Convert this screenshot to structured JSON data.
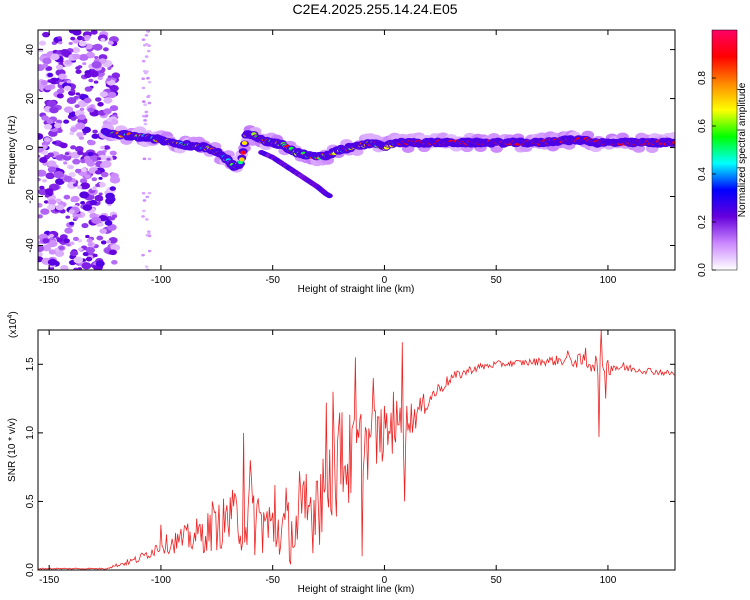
{
  "title": "C2E4.2025.255.14.24.E05",
  "chart_data": [
    {
      "type": "heatmap",
      "xlabel": "Height of straight line (km)",
      "ylabel": "Frequency (Hz)",
      "xlim": [
        -155,
        130
      ],
      "ylim": [
        -50,
        48
      ],
      "x_ticks": [
        -150,
        -100,
        -50,
        0,
        50,
        100
      ],
      "y_ticks": [
        -40,
        -20,
        0,
        20,
        40
      ],
      "colorbar": {
        "label": "Normalized spectral amplitude",
        "range": [
          0,
          1
        ],
        "ticks": [
          "0.0",
          "0.2",
          "0.4",
          "0.6",
          "0.8"
        ],
        "tick_values": [
          0,
          0.2,
          0.4,
          0.6,
          0.8
        ],
        "colors": [
          "#ffffff",
          "#cc88ff",
          "#6600dd",
          "#0000ff",
          "#00ffff",
          "#00ff00",
          "#ffff00",
          "#ff8800",
          "#ff0000",
          "#ff0066"
        ]
      },
      "ridge": {
        "x": [
          -125,
          -115,
          -105,
          -95,
          -88,
          -80,
          -75,
          -70,
          -67,
          -64,
          -62,
          -58,
          -55,
          -50,
          -45,
          -40,
          -35,
          -30,
          -25,
          -20,
          -15,
          -10,
          -5,
          0,
          5,
          10,
          20,
          40,
          60,
          70,
          80,
          90,
          95,
          100,
          110,
          120,
          130
        ],
        "y": [
          6,
          5,
          4,
          2,
          1,
          0,
          -2,
          -5,
          -8,
          -6,
          5,
          5,
          3,
          2,
          1,
          -2,
          -3,
          -4,
          -3,
          -1,
          0,
          1,
          2,
          0,
          2,
          2,
          2,
          2,
          2,
          2,
          3,
          3,
          2,
          2,
          2,
          2,
          2
        ]
      },
      "branch": {
        "x": [
          -55,
          -50,
          -45,
          -40,
          -35,
          -30,
          -26,
          -24
        ],
        "y": [
          -2,
          -4,
          -7,
          -10,
          -13,
          -16,
          -19,
          -20
        ]
      },
      "noise_region": {
        "x_range": [
          -155,
          -120
        ],
        "y_range": [
          -50,
          48
        ],
        "amplitude": 0.2
      }
    },
    {
      "type": "line",
      "xlabel": "Height of straight line (km)",
      "ylabel": "SNR (10 * v/v)",
      "y_multiplier": "(x10",
      "y_multiplier_exp": "4",
      "y_multiplier_close": ")",
      "xlim": [
        -155,
        130
      ],
      "ylim": [
        0,
        1.75
      ],
      "x_ticks": [
        -150,
        -100,
        -50,
        0,
        50,
        100
      ],
      "y_ticks": [
        "0.0",
        "0.5",
        "1.0",
        "1.5"
      ],
      "y_tick_values": [
        0,
        0.5,
        1.0,
        1.5
      ],
      "color": "#ee2222",
      "baseline": {
        "x": [
          -155,
          -125,
          -110,
          -100,
          -90,
          -80,
          -70,
          -60,
          -50,
          -40,
          -30,
          -25,
          -20,
          -15,
          -10,
          -5,
          0,
          5,
          10,
          15,
          20,
          25,
          30,
          40,
          50,
          60,
          70,
          80,
          90,
          95,
          100,
          110,
          120,
          130
        ],
        "y": [
          0.01,
          0.01,
          0.08,
          0.18,
          0.22,
          0.27,
          0.36,
          0.4,
          0.3,
          0.28,
          0.52,
          0.72,
          0.78,
          0.8,
          0.9,
          0.95,
          1.0,
          1.05,
          1.08,
          1.15,
          1.25,
          1.33,
          1.4,
          1.47,
          1.5,
          1.51,
          1.52,
          1.53,
          1.52,
          1.5,
          1.49,
          1.47,
          1.45,
          1.43
        ]
      },
      "noise": {
        "x": [
          -155,
          -125,
          -110,
          -100,
          -90,
          -80,
          -70,
          -60,
          -50,
          -40,
          -30,
          -25,
          -20,
          -15,
          -10,
          -5,
          0,
          5,
          10,
          15,
          20,
          25,
          30,
          40,
          50,
          60,
          70,
          80,
          90,
          95,
          100,
          110,
          120,
          130
        ],
        "y": [
          0.005,
          0.005,
          0.03,
          0.06,
          0.1,
          0.15,
          0.2,
          0.3,
          0.22,
          0.25,
          0.38,
          0.4,
          0.4,
          0.35,
          0.3,
          0.25,
          0.2,
          0.2,
          0.15,
          0.1,
          0.07,
          0.05,
          0.04,
          0.03,
          0.025,
          0.025,
          0.03,
          0.04,
          0.06,
          0.08,
          0.07,
          0.03,
          0.025,
          0.02
        ]
      },
      "spikes": [
        {
          "x": -100,
          "y": 0.33
        },
        {
          "x": -91,
          "y": 0.3
        },
        {
          "x": -77,
          "y": 0.5
        },
        {
          "x": -69,
          "y": 0.53
        },
        {
          "x": -63,
          "y": 1.0
        },
        {
          "x": -60,
          "y": 0.8
        },
        {
          "x": -49,
          "y": 0.62
        },
        {
          "x": -44,
          "y": 0.6
        },
        {
          "x": -38,
          "y": 0.72
        },
        {
          "x": -35,
          "y": 0.7
        },
        {
          "x": -30,
          "y": 0.65
        },
        {
          "x": -26,
          "y": 1.22
        },
        {
          "x": -23,
          "y": 1.3
        },
        {
          "x": -19,
          "y": 1.15
        },
        {
          "x": -13,
          "y": 1.55
        },
        {
          "x": -10,
          "y": 0.1
        },
        {
          "x": -5,
          "y": 1.4
        },
        {
          "x": 4,
          "y": 1.3
        },
        {
          "x": 8,
          "y": 1.66
        },
        {
          "x": 9,
          "y": 0.5
        },
        {
          "x": 82,
          "y": 1.6
        },
        {
          "x": 90,
          "y": 1.62
        },
        {
          "x": 96,
          "y": 0.97
        },
        {
          "x": 97,
          "y": 1.75
        },
        {
          "x": 99,
          "y": 1.25
        }
      ]
    }
  ]
}
